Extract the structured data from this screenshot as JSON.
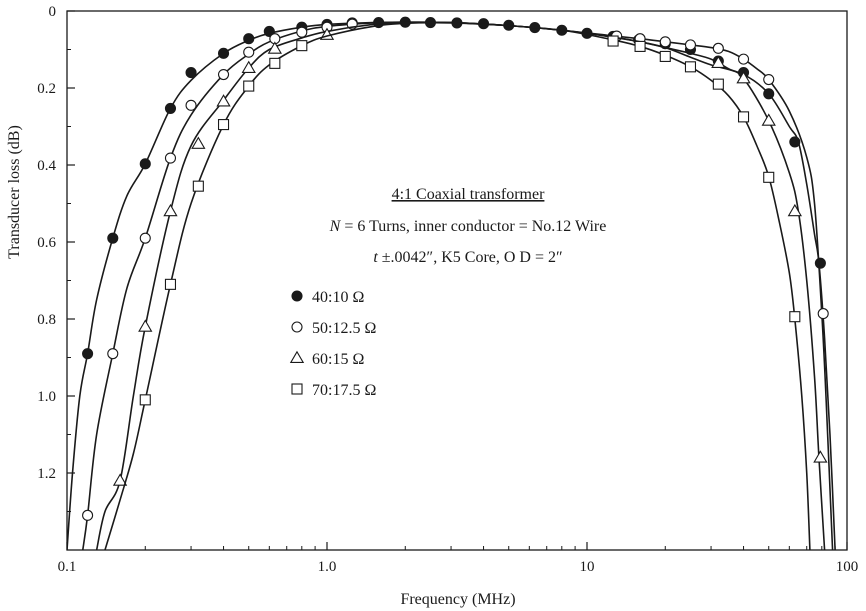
{
  "chart_data": {
    "type": "line",
    "xscale": "log",
    "xlim": [
      0.1,
      100
    ],
    "ylim": [
      0,
      1.4
    ],
    "y_inverted": true,
    "grid": false,
    "xlabel": "Frequency (MHz)",
    "ylabel": "Transducer loss (dB)",
    "x_ticks": [
      {
        "value": 0.1,
        "label": "0.1"
      },
      {
        "value": 1,
        "label": "1.0"
      },
      {
        "value": 10,
        "label": "10"
      },
      {
        "value": 100,
        "label": "100"
      }
    ],
    "y_ticks": [
      {
        "value": 0,
        "label": "0"
      },
      {
        "value": 0.2,
        "label": "0.2"
      },
      {
        "value": 0.4,
        "label": "0.4"
      },
      {
        "value": 0.6,
        "label": "0.6"
      },
      {
        "value": 0.8,
        "label": "0.8"
      },
      {
        "value": 1.0,
        "label": "1.0"
      },
      {
        "value": 1.2,
        "label": "1.2"
      }
    ],
    "annotation": {
      "title": "4:1 Coaxial transformer",
      "line2_prefix": "N",
      "line2_rest": " = 6 Turns, inner conductor = No.12 Wire",
      "line3_prefix": "t",
      "line3_rest": " ±.0042″, K5 Core, O D = 2″"
    },
    "legend_position": "center-left",
    "series": [
      {
        "name": "40:10 Ω",
        "marker": "filled-circle",
        "curve": [
          [
            0.1,
            1.4
          ],
          [
            0.105,
            1.2
          ],
          [
            0.112,
            1.0
          ],
          [
            0.12,
            0.89
          ],
          [
            0.13,
            0.75
          ],
          [
            0.15,
            0.59
          ],
          [
            0.17,
            0.48
          ],
          [
            0.2,
            0.397
          ],
          [
            0.25,
            0.253
          ],
          [
            0.3,
            0.18
          ],
          [
            0.4,
            0.11
          ],
          [
            0.5,
            0.076
          ],
          [
            0.6,
            0.058
          ],
          [
            0.8,
            0.042
          ],
          [
            1.0,
            0.035
          ],
          [
            1.5,
            0.03
          ],
          [
            2,
            0.029
          ],
          [
            3,
            0.03
          ],
          [
            5,
            0.038
          ],
          [
            8,
            0.05
          ],
          [
            12,
            0.065
          ],
          [
            16,
            0.08
          ],
          [
            20,
            0.095
          ],
          [
            25,
            0.12
          ],
          [
            30,
            0.14
          ],
          [
            40,
            0.165
          ],
          [
            50,
            0.215
          ],
          [
            60,
            0.3
          ],
          [
            65,
            0.34
          ],
          [
            70,
            0.45
          ],
          [
            75,
            0.58
          ],
          [
            78,
            0.655
          ],
          [
            82,
            0.85
          ],
          [
            86,
            1.1
          ],
          [
            90,
            1.4
          ]
        ],
        "points": [
          [
            0.12,
            0.89
          ],
          [
            0.15,
            0.59
          ],
          [
            0.2,
            0.397
          ],
          [
            0.25,
            0.253
          ],
          [
            0.3,
            0.16
          ],
          [
            0.4,
            0.11
          ],
          [
            0.5,
            0.072
          ],
          [
            0.6,
            0.053
          ],
          [
            0.8,
            0.042
          ],
          [
            1.0,
            0.035
          ],
          [
            1.25,
            0.031
          ],
          [
            1.58,
            0.03
          ],
          [
            2.0,
            0.029
          ],
          [
            2.5,
            0.03
          ],
          [
            3.16,
            0.031
          ],
          [
            4.0,
            0.033
          ],
          [
            5.0,
            0.037
          ],
          [
            6.3,
            0.043
          ],
          [
            8.0,
            0.05
          ],
          [
            10,
            0.058
          ],
          [
            12.6,
            0.066
          ],
          [
            15.8,
            0.075
          ],
          [
            20,
            0.085
          ],
          [
            25,
            0.1
          ],
          [
            32,
            0.13
          ],
          [
            40,
            0.16
          ],
          [
            50,
            0.215
          ],
          [
            63,
            0.34
          ],
          [
            79,
            0.655
          ]
        ]
      },
      {
        "name": "50:12.5 Ω",
        "marker": "open-circle",
        "curve": [
          [
            0.115,
            1.4
          ],
          [
            0.12,
            1.31
          ],
          [
            0.13,
            1.1
          ],
          [
            0.15,
            0.89
          ],
          [
            0.17,
            0.72
          ],
          [
            0.2,
            0.59
          ],
          [
            0.25,
            0.382
          ],
          [
            0.3,
            0.27
          ],
          [
            0.4,
            0.165
          ],
          [
            0.5,
            0.112
          ],
          [
            0.6,
            0.08
          ],
          [
            0.8,
            0.052
          ],
          [
            1.0,
            0.04
          ],
          [
            1.5,
            0.031
          ],
          [
            2,
            0.029
          ],
          [
            3,
            0.03
          ],
          [
            5,
            0.038
          ],
          [
            8,
            0.05
          ],
          [
            12,
            0.063
          ],
          [
            16,
            0.072
          ],
          [
            20,
            0.08
          ],
          [
            25,
            0.088
          ],
          [
            30,
            0.095
          ],
          [
            35,
            0.105
          ],
          [
            40,
            0.125
          ],
          [
            45,
            0.15
          ],
          [
            50,
            0.178
          ],
          [
            60,
            0.26
          ],
          [
            70,
            0.38
          ],
          [
            75,
            0.5
          ],
          [
            80,
            0.786
          ],
          [
            83,
            1.0
          ],
          [
            88,
            1.4
          ]
        ],
        "points": [
          [
            0.12,
            1.31
          ],
          [
            0.15,
            0.89
          ],
          [
            0.2,
            0.59
          ],
          [
            0.25,
            0.382
          ],
          [
            0.3,
            0.245
          ],
          [
            0.4,
            0.165
          ],
          [
            0.5,
            0.107
          ],
          [
            0.63,
            0.072
          ],
          [
            0.8,
            0.055
          ],
          [
            1.0,
            0.042
          ],
          [
            1.25,
            0.034
          ],
          [
            13,
            0.065
          ],
          [
            16,
            0.072
          ],
          [
            20,
            0.08
          ],
          [
            25,
            0.088
          ],
          [
            32,
            0.097
          ],
          [
            40,
            0.125
          ],
          [
            50,
            0.178
          ],
          [
            81,
            0.786
          ]
        ]
      },
      {
        "name": "60:15 Ω",
        "marker": "open-triangle",
        "curve": [
          [
            0.13,
            1.4
          ],
          [
            0.14,
            1.3
          ],
          [
            0.16,
            1.22
          ],
          [
            0.18,
            1.0
          ],
          [
            0.2,
            0.82
          ],
          [
            0.25,
            0.52
          ],
          [
            0.3,
            0.35
          ],
          [
            0.4,
            0.232
          ],
          [
            0.5,
            0.148
          ],
          [
            0.6,
            0.1
          ],
          [
            0.8,
            0.07
          ],
          [
            1.0,
            0.053
          ],
          [
            1.5,
            0.035
          ],
          [
            2,
            0.03
          ],
          [
            3,
            0.03
          ],
          [
            5,
            0.038
          ],
          [
            8,
            0.05
          ],
          [
            12,
            0.066
          ],
          [
            16,
            0.08
          ],
          [
            20,
            0.095
          ],
          [
            25,
            0.11
          ],
          [
            30,
            0.125
          ],
          [
            35,
            0.15
          ],
          [
            40,
            0.175
          ],
          [
            50,
            0.285
          ],
          [
            60,
            0.42
          ],
          [
            65,
            0.52
          ],
          [
            70,
            0.7
          ],
          [
            75,
            0.95
          ],
          [
            78,
            1.16
          ],
          [
            82,
            1.4
          ]
        ],
        "points": [
          [
            0.16,
            1.22
          ],
          [
            0.2,
            0.82
          ],
          [
            0.25,
            0.52
          ],
          [
            0.32,
            0.345
          ],
          [
            0.4,
            0.235
          ],
          [
            0.5,
            0.148
          ],
          [
            0.63,
            0.098
          ],
          [
            1.0,
            0.062
          ],
          [
            32,
            0.135
          ],
          [
            40,
            0.175
          ],
          [
            50,
            0.285
          ],
          [
            63,
            0.52
          ],
          [
            79,
            1.16
          ]
        ]
      },
      {
        "name": "70:17.5 Ω",
        "marker": "open-square",
        "curve": [
          [
            0.14,
            1.4
          ],
          [
            0.16,
            1.27
          ],
          [
            0.18,
            1.15
          ],
          [
            0.2,
            1.01
          ],
          [
            0.25,
            0.71
          ],
          [
            0.3,
            0.5
          ],
          [
            0.4,
            0.295
          ],
          [
            0.5,
            0.195
          ],
          [
            0.6,
            0.14
          ],
          [
            0.8,
            0.09
          ],
          [
            1.0,
            0.065
          ],
          [
            1.5,
            0.04
          ],
          [
            2,
            0.032
          ],
          [
            3,
            0.031
          ],
          [
            5,
            0.038
          ],
          [
            8,
            0.05
          ],
          [
            12,
            0.072
          ],
          [
            16,
            0.092
          ],
          [
            20,
            0.115
          ],
          [
            25,
            0.145
          ],
          [
            30,
            0.18
          ],
          [
            35,
            0.22
          ],
          [
            40,
            0.275
          ],
          [
            45,
            0.35
          ],
          [
            50,
            0.43
          ],
          [
            55,
            0.55
          ],
          [
            60,
            0.68
          ],
          [
            63,
            0.8
          ],
          [
            67,
            1.0
          ],
          [
            70,
            1.2
          ],
          [
            72,
            1.4
          ]
        ],
        "points": [
          [
            0.2,
            1.01
          ],
          [
            0.25,
            0.71
          ],
          [
            0.32,
            0.455
          ],
          [
            0.4,
            0.295
          ],
          [
            0.5,
            0.195
          ],
          [
            0.63,
            0.136
          ],
          [
            0.8,
            0.09
          ],
          [
            12.6,
            0.078
          ],
          [
            16,
            0.092
          ],
          [
            20,
            0.118
          ],
          [
            25,
            0.145
          ],
          [
            32,
            0.19
          ],
          [
            40,
            0.275
          ],
          [
            50,
            0.432
          ],
          [
            63,
            0.794
          ]
        ]
      }
    ]
  }
}
